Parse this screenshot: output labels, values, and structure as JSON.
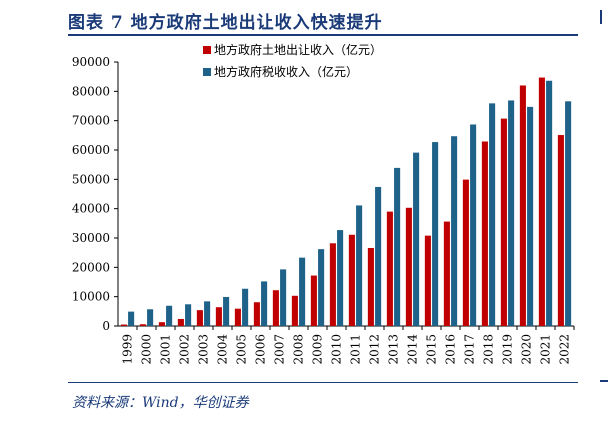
{
  "figure": {
    "title": "图表 7   地方政府土地出让收入快速提升",
    "source": "资料来源：Wind，华创证券"
  },
  "colors": {
    "land": "#c00000",
    "tax": "#1f6289",
    "accent": "#1a3a78"
  },
  "chart_data": {
    "type": "bar",
    "title": "",
    "xlabel": "",
    "ylabel": "",
    "ylim": [
      0,
      90000
    ],
    "yticks": [
      0,
      10000,
      20000,
      30000,
      40000,
      50000,
      60000,
      70000,
      80000,
      90000
    ],
    "categories": [
      "1999",
      "2000",
      "2001",
      "2002",
      "2003",
      "2004",
      "2005",
      "2006",
      "2007",
      "2008",
      "2009",
      "2010",
      "2011",
      "2012",
      "2013",
      "2014",
      "2015",
      "2016",
      "2017",
      "2018",
      "2019",
      "2020",
      "2021",
      "2022"
    ],
    "series": [
      {
        "name": "地方政府土地出让收入（亿元）",
        "color": "#c00000",
        "values": [
          500,
          600,
          1300,
          2400,
          5400,
          6400,
          5900,
          8100,
          12200,
          10300,
          17200,
          28200,
          31100,
          26600,
          39000,
          40300,
          30800,
          35600,
          49900,
          62900,
          70700,
          82000,
          84700,
          65100
        ]
      },
      {
        "name": "地方政府税收收入（亿元）",
        "color": "#1f6289",
        "values": [
          4900,
          5700,
          6900,
          7400,
          8400,
          9900,
          12700,
          15200,
          19300,
          23300,
          26200,
          32700,
          41100,
          47400,
          53900,
          59100,
          62700,
          64700,
          68700,
          75900,
          76900,
          74700,
          83600,
          76600
        ]
      }
    ],
    "legend": "top-left"
  }
}
